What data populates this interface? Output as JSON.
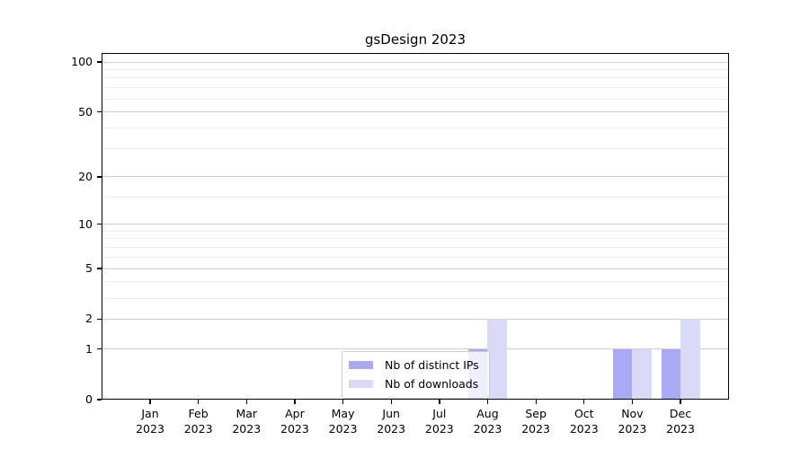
{
  "chart_data": {
    "type": "bar",
    "title": "gsDesign 2023",
    "categories": [
      "Jan 2023",
      "Feb 2023",
      "Mar 2023",
      "Apr 2023",
      "May 2023",
      "Jun 2023",
      "Jul 2023",
      "Aug 2023",
      "Sep 2023",
      "Oct 2023",
      "Nov 2023",
      "Dec 2023"
    ],
    "series": [
      {
        "name": "Nb of distinct IPs",
        "color": "#a9a9f4",
        "values": [
          0,
          0,
          0,
          0,
          0,
          0,
          0,
          1,
          0,
          0,
          1,
          1
        ]
      },
      {
        "name": "Nb of downloads",
        "color": "#dadaf8",
        "values": [
          0,
          0,
          0,
          0,
          0,
          0,
          0,
          2,
          0,
          0,
          1,
          2
        ]
      }
    ],
    "xlabel": "",
    "ylabel": "",
    "y_scale": "log1p",
    "ylim": [
      0,
      100
    ],
    "y_tick_labels": [
      0,
      1,
      2,
      5,
      10,
      20,
      50,
      100
    ],
    "y_minor_gridlines": [
      3,
      4,
      6,
      7,
      8,
      9,
      15,
      30,
      40,
      60,
      70,
      80,
      90
    ],
    "grid": "horizontal",
    "legend_position": "inside-bottom-center"
  },
  "colors": {
    "background": "#ffffff",
    "axis": "#000000",
    "text": "#000000",
    "grid_major": "#cfcfcf",
    "grid_minor": "#ededed",
    "legend_border": "#cccccc",
    "legend_background": "rgba(255,255,255,0.8)"
  }
}
